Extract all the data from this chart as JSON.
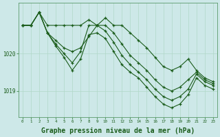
{
  "background_color": "#cde8e8",
  "grid_color": "#b0d8c8",
  "line_color": "#1a5c1a",
  "marker_color": "#1a5c1a",
  "xlabel": "Graphe pression niveau de la mer (hPa)",
  "xlabel_fontsize": 7.0,
  "xlim": [
    -0.5,
    23.5
  ],
  "ylim": [
    1018.3,
    1021.35
  ],
  "yticks": [
    1019,
    1020
  ],
  "xticks": [
    0,
    1,
    2,
    3,
    4,
    5,
    6,
    7,
    8,
    9,
    10,
    11,
    12,
    13,
    14,
    15,
    16,
    17,
    18,
    19,
    20,
    21,
    22,
    23
  ],
  "series": [
    [
      1020.75,
      1020.75,
      1021.1,
      1020.75,
      1020.75,
      1020.75,
      1020.75,
      1020.75,
      1020.9,
      1020.75,
      1020.95,
      1020.75,
      1020.75,
      1020.55,
      1020.35,
      1020.15,
      1019.9,
      1019.65,
      1019.55,
      1019.65,
      1019.85,
      1019.55,
      1019.35,
      1019.25
    ],
    [
      1020.75,
      1020.75,
      1021.1,
      1020.55,
      1020.35,
      1020.15,
      1020.05,
      1020.15,
      1020.45,
      1020.75,
      1020.75,
      1020.55,
      1020.25,
      1019.95,
      1019.75,
      1019.55,
      1019.3,
      1019.1,
      1019.0,
      1019.1,
      1019.3,
      1019.5,
      1019.3,
      1019.2
    ],
    [
      1020.75,
      1020.75,
      1021.1,
      1020.55,
      1020.25,
      1020.0,
      1019.75,
      1020.05,
      1020.75,
      1020.75,
      1020.6,
      1020.3,
      1019.95,
      1019.7,
      1019.5,
      1019.3,
      1019.05,
      1018.85,
      1018.75,
      1018.85,
      1019.05,
      1019.45,
      1019.25,
      1019.15
    ],
    [
      1020.75,
      1020.75,
      1021.1,
      1020.55,
      1020.2,
      1019.9,
      1019.55,
      1019.85,
      1020.5,
      1020.55,
      1020.4,
      1020.05,
      1019.7,
      1019.5,
      1019.35,
      1019.1,
      1018.85,
      1018.65,
      1018.55,
      1018.65,
      1018.9,
      1019.35,
      1019.15,
      1019.05
    ]
  ]
}
